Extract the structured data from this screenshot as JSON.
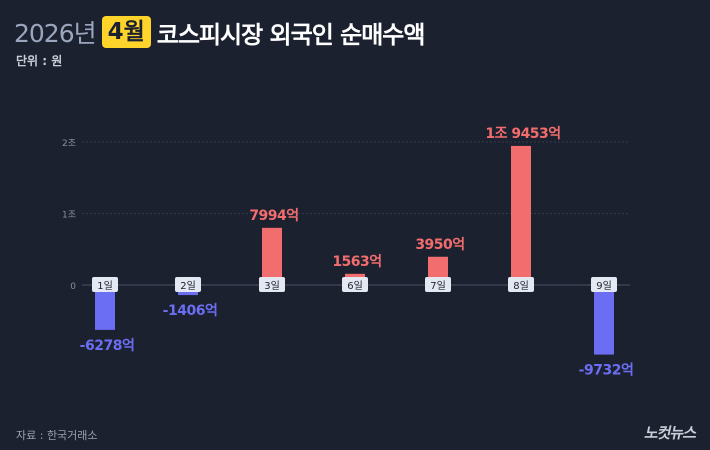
{
  "header": {
    "year": "2026년",
    "month": "4월",
    "title_rest": "코스피시장 외국인 순매수액",
    "unit": "단위 : 원"
  },
  "footer": {
    "source": "자료 : 한국거래소",
    "logo": "노컷뉴스"
  },
  "colors": {
    "positive": "#f26d6d",
    "negative": "#6b6ef2",
    "background": "#1c2130",
    "category_pill": "#e4e8f2"
  },
  "chart_data": {
    "type": "bar",
    "title": "2026년 4월 코스피시장 외국인 순매수액",
    "unit": "원",
    "categories": [
      "1일",
      "2일",
      "3일",
      "6일",
      "7일",
      "8일",
      "9일"
    ],
    "values": [
      -6278,
      -1406,
      7994,
      1563,
      3950,
      19453,
      -9732
    ],
    "value_unit": "억",
    "data_labels": [
      "-6278억",
      "-1406억",
      "7994억",
      "1563억",
      "3950억",
      "1조 9453억",
      "-9732억"
    ],
    "y_ticks": [
      {
        "value": 0,
        "label": "0"
      },
      {
        "value": 10000,
        "label": "1조"
      },
      {
        "value": 20000,
        "label": "2조"
      }
    ],
    "ylim": [
      -10000,
      20000
    ],
    "grid": true
  }
}
